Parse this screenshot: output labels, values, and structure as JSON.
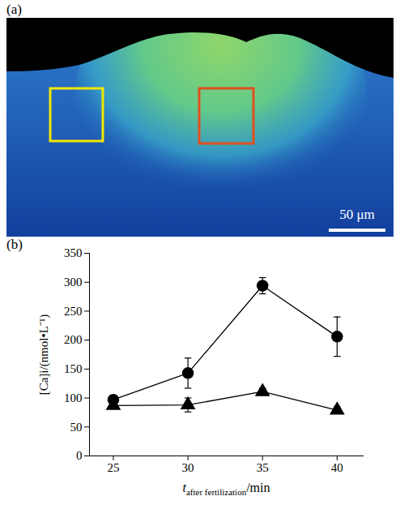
{
  "micrograph": {
    "label": "(a)",
    "scale_bar_label": "50 μm"
  },
  "chart_data": {
    "type": "line",
    "panel_label": "(b)",
    "ylabel": "[Ca]i/(nmol•L⁻¹)",
    "xlabel": {
      "text": "t",
      "subscript": "after fertilization",
      "suffix": "/min"
    },
    "x": [
      25,
      30,
      35,
      40
    ],
    "xlim": [
      23.4,
      41.8
    ],
    "xticks": [
      25,
      30,
      35,
      40
    ],
    "ylim": [
      0,
      350
    ],
    "yticks": [
      0,
      50,
      100,
      150,
      200,
      250,
      300,
      350
    ],
    "series": [
      {
        "marker": "circle",
        "color": "#000000",
        "values": [
          97,
          143,
          294,
          206
        ],
        "errors": [
          7,
          26,
          14,
          34
        ]
      },
      {
        "marker": "triangle",
        "color": "#000000",
        "values": [
          87,
          88,
          111,
          79
        ],
        "errors": [
          5,
          12,
          6,
          6
        ]
      }
    ]
  }
}
